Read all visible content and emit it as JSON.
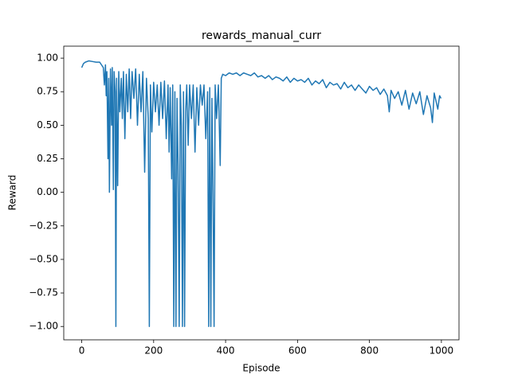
{
  "chart_data": {
    "type": "line",
    "title": "rewards_manual_curr",
    "xlabel": "Episode",
    "ylabel": "Reward",
    "x": [
      0,
      5,
      10,
      20,
      30,
      40,
      50,
      55,
      60,
      63,
      66,
      68,
      70,
      73,
      75,
      77,
      80,
      83,
      85,
      88,
      90,
      93,
      95,
      97,
      100,
      103,
      106,
      110,
      113,
      116,
      120,
      124,
      128,
      132,
      136,
      140,
      145,
      150,
      155,
      160,
      165,
      170,
      175,
      180,
      185,
      188,
      191,
      195,
      200,
      205,
      210,
      215,
      220,
      225,
      230,
      235,
      240,
      243,
      246,
      250,
      253,
      256,
      259,
      262,
      265,
      268,
      271,
      274,
      277,
      280,
      283,
      286,
      289,
      292,
      296,
      300,
      305,
      310,
      315,
      320,
      325,
      330,
      335,
      340,
      345,
      350,
      353,
      356,
      359,
      362,
      365,
      368,
      371,
      375,
      380,
      385,
      388,
      392,
      400,
      410,
      420,
      430,
      440,
      450,
      460,
      470,
      480,
      490,
      500,
      510,
      520,
      530,
      540,
      550,
      560,
      570,
      580,
      590,
      600,
      610,
      620,
      630,
      640,
      650,
      660,
      670,
      680,
      690,
      700,
      710,
      720,
      730,
      740,
      750,
      760,
      770,
      780,
      790,
      800,
      810,
      820,
      830,
      840,
      850,
      855,
      860,
      870,
      880,
      890,
      900,
      910,
      920,
      930,
      940,
      950,
      960,
      970,
      975,
      980,
      990,
      995,
      999
    ],
    "series": [
      {
        "name": "reward",
        "color": "#1f77b4",
        "values": [
          0.93,
          0.96,
          0.97,
          0.98,
          0.975,
          0.97,
          0.97,
          0.95,
          0.93,
          0.8,
          0.95,
          0.72,
          0.9,
          0.25,
          0.85,
          0.0,
          0.92,
          0.5,
          0.93,
          0.02,
          0.9,
          0.75,
          -1.0,
          0.85,
          0.05,
          0.9,
          0.6,
          0.85,
          0.55,
          0.9,
          0.4,
          0.88,
          0.6,
          0.92,
          0.55,
          0.9,
          0.7,
          0.92,
          0.5,
          0.88,
          0.6,
          0.9,
          0.15,
          0.85,
          0.55,
          -1.0,
          0.8,
          0.45,
          0.82,
          0.6,
          0.8,
          0.5,
          0.82,
          0.55,
          0.83,
          0.4,
          0.8,
          0.3,
          0.78,
          0.1,
          0.8,
          -1.0,
          0.75,
          -1.0,
          0.7,
          0.2,
          -1.0,
          0.8,
          0.5,
          -1.0,
          0.75,
          -1.0,
          0.6,
          0.8,
          0.35,
          0.8,
          0.55,
          0.8,
          0.3,
          0.78,
          0.5,
          0.8,
          0.65,
          0.8,
          0.4,
          0.75,
          -1.0,
          0.78,
          -1.0,
          0.7,
          0.0,
          -1.0,
          0.8,
          0.55,
          0.8,
          0.2,
          0.85,
          0.88,
          0.87,
          0.89,
          0.88,
          0.89,
          0.87,
          0.89,
          0.88,
          0.87,
          0.89,
          0.86,
          0.87,
          0.85,
          0.87,
          0.84,
          0.86,
          0.85,
          0.83,
          0.86,
          0.82,
          0.85,
          0.83,
          0.84,
          0.82,
          0.85,
          0.8,
          0.83,
          0.81,
          0.84,
          0.78,
          0.82,
          0.8,
          0.81,
          0.77,
          0.82,
          0.78,
          0.8,
          0.76,
          0.8,
          0.77,
          0.74,
          0.79,
          0.76,
          0.78,
          0.73,
          0.77,
          0.72,
          0.6,
          0.76,
          0.7,
          0.75,
          0.65,
          0.76,
          0.62,
          0.74,
          0.66,
          0.75,
          0.58,
          0.72,
          0.63,
          0.52,
          0.74,
          0.62,
          0.72,
          0.7
        ]
      }
    ],
    "xlim": [
      -49.95,
      1048.95
    ],
    "ylim": [
      -1.0995,
      1.0895
    ],
    "xticks": [
      0,
      200,
      400,
      600,
      800,
      1000
    ],
    "yticks": [
      {
        "value": -1,
        "label": "−1.00"
      },
      {
        "value": -0.75,
        "label": "−0.75"
      },
      {
        "value": -0.5,
        "label": "−0.50"
      },
      {
        "value": -0.25,
        "label": "−0.25"
      },
      {
        "value": 0,
        "label": "0.00"
      },
      {
        "value": 0.25,
        "label": "0.25"
      },
      {
        "value": 0.5,
        "label": "0.50"
      },
      {
        "value": 0.75,
        "label": "0.75"
      },
      {
        "value": 1,
        "label": "1.00"
      }
    ]
  }
}
